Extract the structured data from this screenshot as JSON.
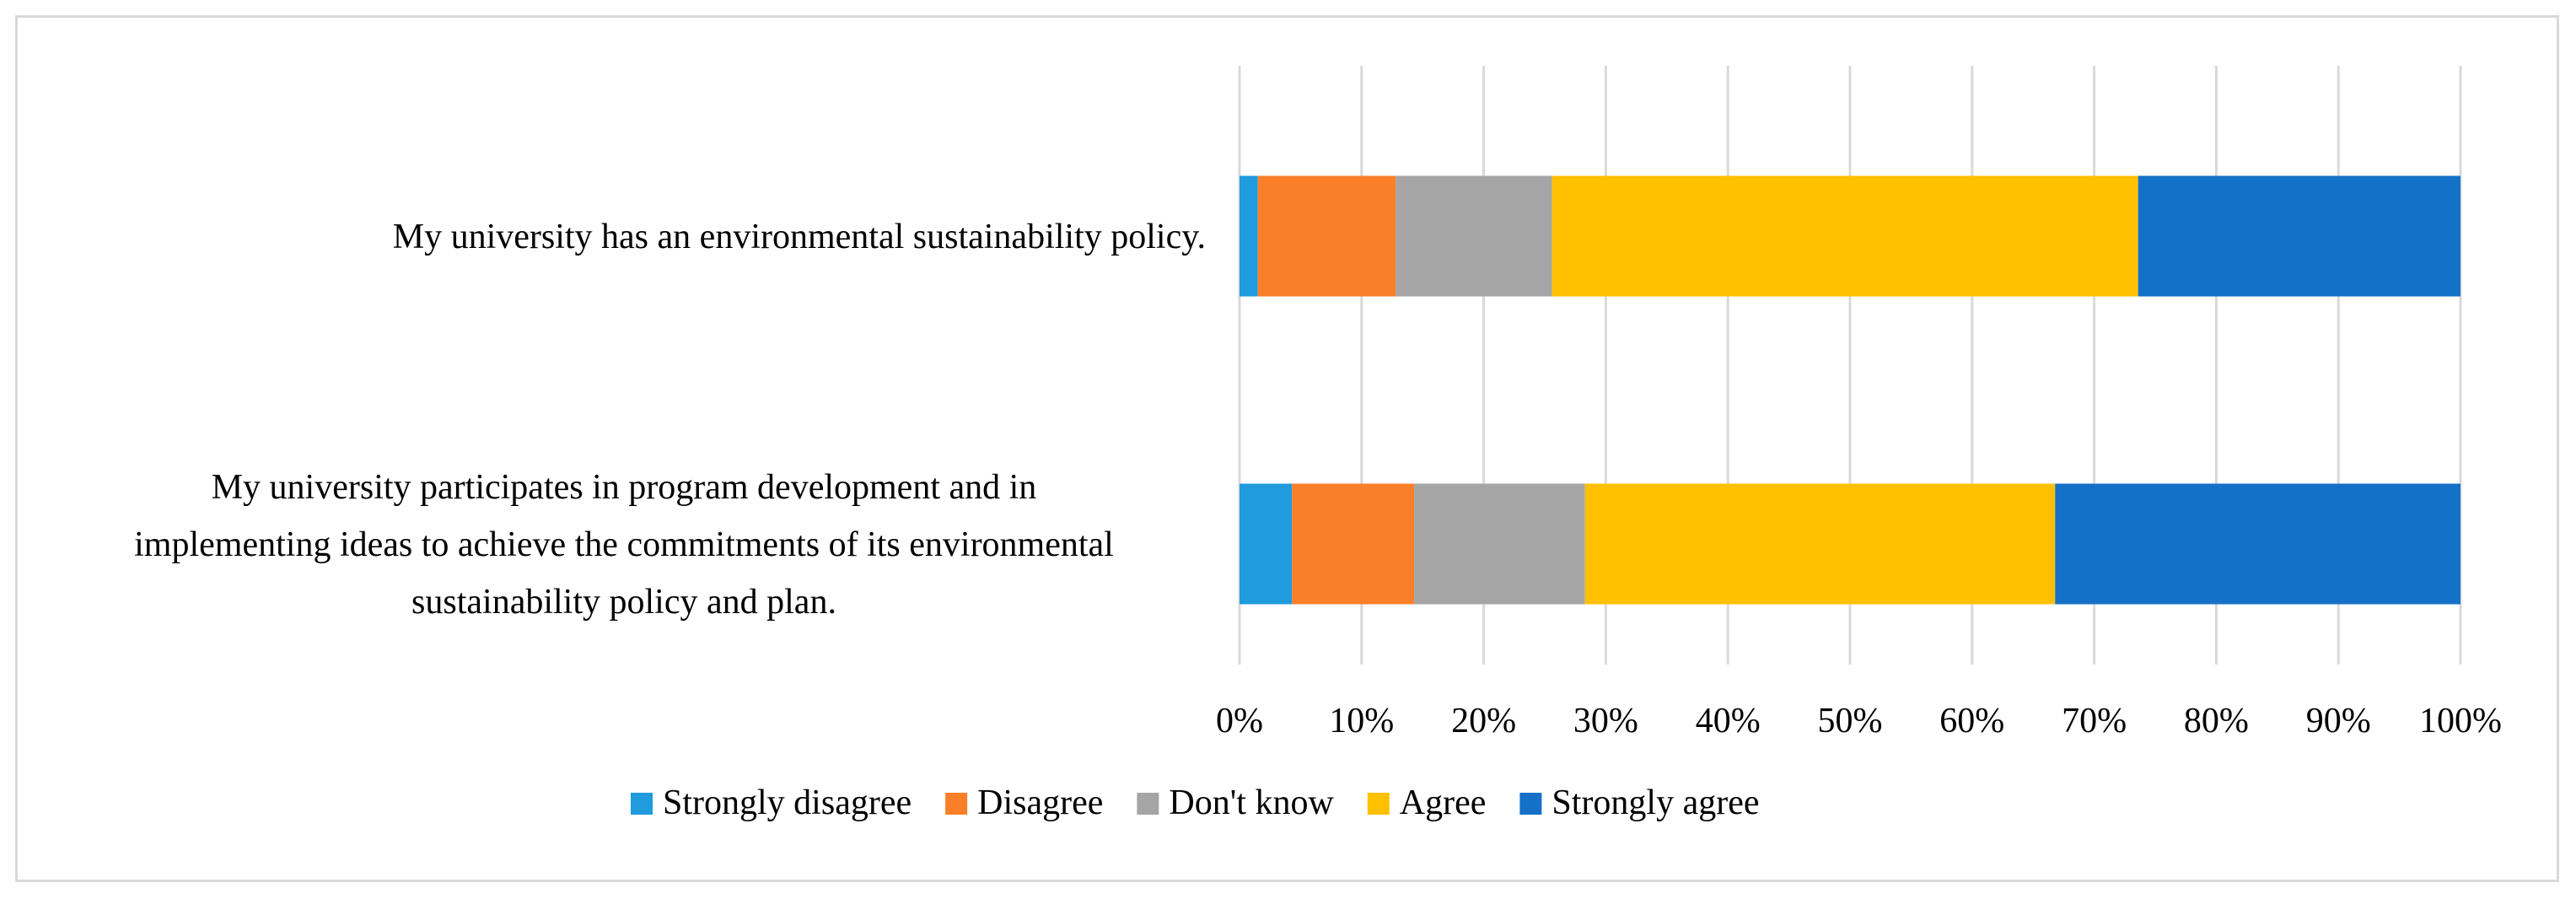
{
  "chart_data": {
    "type": "bar",
    "orientation": "horizontal",
    "stacked": "percent",
    "title": "",
    "xlabel": "",
    "ylabel": "",
    "xlim": [
      0,
      100
    ],
    "x_ticks": [
      "0%",
      "10%",
      "20%",
      "30%",
      "40%",
      "50%",
      "60%",
      "70%",
      "80%",
      "90%",
      "100%"
    ],
    "grid": "vertical",
    "legend_position": "bottom",
    "categories": [
      {
        "lines": [
          "My university has an environmental sustainability policy."
        ]
      },
      {
        "lines": [
          "My university participates in program development and in",
          "implementing ideas to achieve the commitments of its environmental",
          "sustainability policy and plan."
        ]
      }
    ],
    "series": [
      {
        "name": "Strongly disagree",
        "color": "#1f9bde",
        "values": [
          1.5,
          4.3
        ]
      },
      {
        "name": "Disagree",
        "color": "#fb7f28",
        "values": [
          11.3,
          10.0
        ]
      },
      {
        "name": "Don't know",
        "color": "#a5a5a5",
        "values": [
          12.8,
          14.0
        ]
      },
      {
        "name": "Agree",
        "color": "#ffc000",
        "values": [
          48.0,
          38.5
        ]
      },
      {
        "name": "Strongly agree",
        "color": "#1570c8",
        "values": [
          26.4,
          33.2
        ]
      }
    ]
  }
}
